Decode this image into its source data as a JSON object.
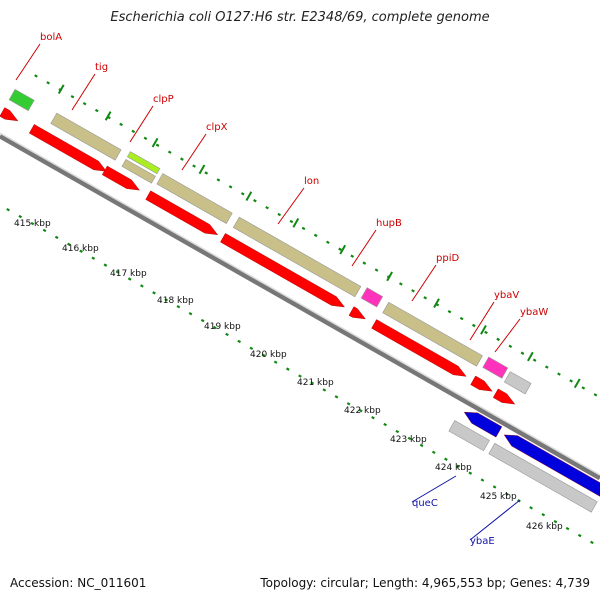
{
  "title": "Escherichia coli O127:H6 str. E2348/69, complete genome",
  "footer": {
    "accession": "Accession: NC_011601",
    "topology": "Topology: circular; Length: 4,965,553 bp; Genes: 4,739"
  },
  "colors": {
    "cds_forward": "#ff0000",
    "cds_reverse": "#0000dd",
    "gene_bar": "#c8c088",
    "gene_bar_light": "#c0c0c0",
    "backbone": "#888888",
    "tick_forward": "#118811",
    "tick_reverse": "#118811",
    "label_forward": "#cc0000",
    "label_reverse": "#1111aa"
  },
  "kbp_ticks": [
    "415 kbp",
    "416 kbp",
    "417 kbp",
    "418 kbp",
    "419 kbp",
    "420 kbp",
    "421 kbp",
    "422 kbp",
    "423 kbp",
    "424 kbp",
    "425 kbp",
    "426 kbp"
  ],
  "genes": [
    {
      "label": "bolA",
      "strand": "forward",
      "color": "red"
    },
    {
      "label": "tig",
      "strand": "forward",
      "color": "red"
    },
    {
      "label": "clpP",
      "strand": "forward",
      "color": "red"
    },
    {
      "label": "clpX",
      "strand": "forward",
      "color": "red"
    },
    {
      "label": "lon",
      "strand": "forward",
      "color": "red"
    },
    {
      "label": "hupB",
      "strand": "forward",
      "color": "red"
    },
    {
      "label": "ppiD",
      "strand": "forward",
      "color": "red"
    },
    {
      "label": "ybaV",
      "strand": "forward",
      "color": "red"
    },
    {
      "label": "ybaW",
      "strand": "forward",
      "color": "red"
    },
    {
      "label": "queC",
      "strand": "reverse",
      "color": "blue"
    },
    {
      "label": "ybaE",
      "strand": "reverse",
      "color": "blue"
    }
  ]
}
